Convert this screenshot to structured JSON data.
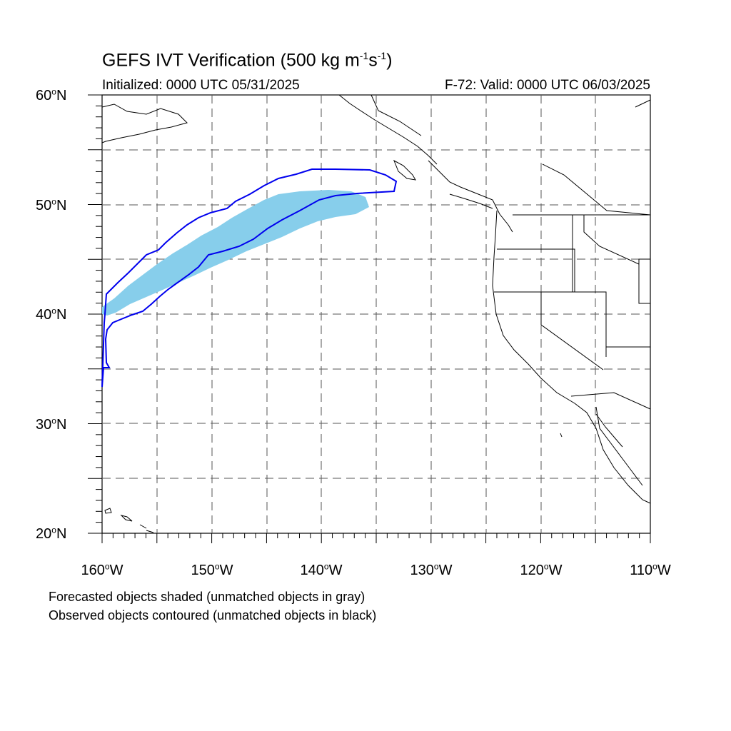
{
  "title": {
    "text_main": "GEFS IVT Verification (500 kg m",
    "exp1": "-1",
    "text_mid": "s",
    "exp2": "-1",
    "text_end": ")"
  },
  "subtitle": {
    "left": "Initialized: 0000 UTC 05/31/2025",
    "right": "F-72: Valid: 0000 UTC 06/03/2025"
  },
  "axes": {
    "lat_labels": [
      "60oN",
      "50oN",
      "40oN",
      "30oN",
      "20oN"
    ],
    "lat_values": [
      60,
      50,
      40,
      30,
      20
    ],
    "lon_labels": [
      "160oW",
      "150oW",
      "140oW",
      "130oW",
      "120oW",
      "110oW"
    ],
    "lon_values": [
      -160,
      -150,
      -140,
      -130,
      -120,
      -110
    ],
    "lat_range": [
      20,
      60
    ],
    "lon_range": [
      -160,
      -110
    ],
    "grid_spacing_deg": 5,
    "grid_style": "dashed"
  },
  "footnotes": {
    "line1": "Forecasted objects shaded (unmatched objects in gray)",
    "line2": "Observed objects contoured (unmatched objects in black)"
  },
  "colors": {
    "forecast_fill": "#87ceeb",
    "observed_contour": "#0000ee",
    "coastline": "#000000",
    "grid": "#555555"
  }
}
